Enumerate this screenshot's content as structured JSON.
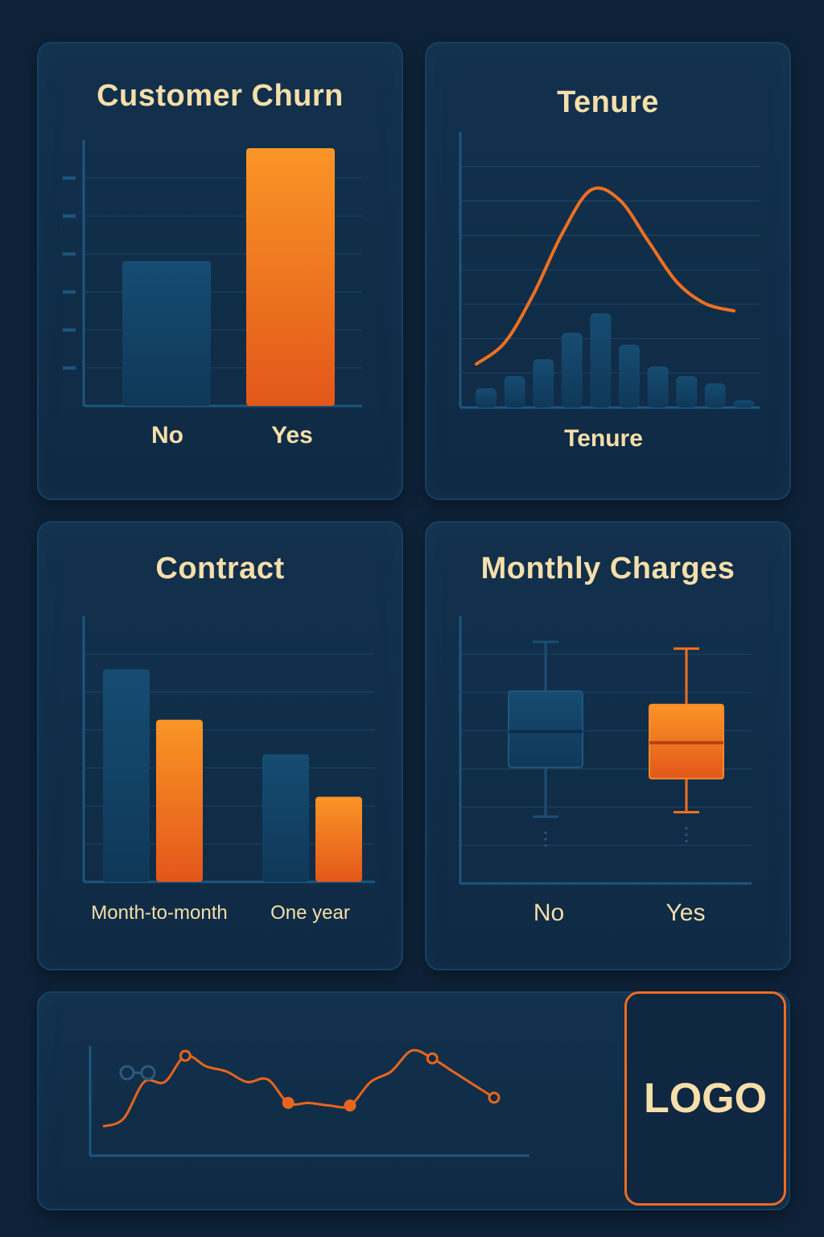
{
  "colors": {
    "dark_bar": "#124466",
    "orange": "#f47b20",
    "text": "#f6dfaa",
    "grid": "#1d4566",
    "axis": "#1d5680"
  },
  "logo": {
    "text": "LOGO"
  },
  "chart_data": [
    {
      "id": "churn",
      "type": "bar",
      "title": "Customer Churn",
      "categories": [
        "No",
        "Yes"
      ],
      "values": [
        36,
        64
      ],
      "ylim": [
        0,
        66
      ],
      "grid": true,
      "series_colors": [
        "dark",
        "orange"
      ]
    },
    {
      "id": "tenure",
      "type": "bar",
      "title": "Tenure",
      "xlabel": "Tenure",
      "values": [
        8,
        13,
        20,
        31,
        39,
        26,
        17,
        13,
        10,
        3
      ],
      "curve": [
        18,
        27,
        47,
        72,
        90,
        86,
        69,
        52,
        43,
        40
      ],
      "ylim": [
        0,
        100
      ],
      "grid": true
    },
    {
      "id": "contract",
      "type": "bar",
      "title": "Contract",
      "categories": [
        "Month-to-month",
        "One year"
      ],
      "series": [
        {
          "color": "dark",
          "values": [
            80,
            48
          ]
        },
        {
          "color": "orange",
          "values": [
            61,
            32
          ]
        }
      ],
      "ylim": [
        0,
        100
      ],
      "grid": true
    },
    {
      "id": "monthly",
      "type": "box",
      "title": "Monthly Charges",
      "categories": [
        "No",
        "Yes"
      ],
      "boxes": [
        {
          "whisker_low": 14,
          "q1": 36,
          "median": 52,
          "q3": 70,
          "whisker_high": 92
        },
        {
          "whisker_low": 16,
          "q1": 31,
          "median": 47,
          "q3": 64,
          "whisker_high": 89
        }
      ],
      "ylim": [
        0,
        100
      ],
      "grid": true
    },
    {
      "id": "trend",
      "type": "line",
      "values": [
        5,
        8,
        22,
        22,
        32,
        28,
        26,
        22,
        23,
        14,
        14,
        13,
        13,
        22,
        26,
        34,
        31,
        26,
        21,
        16
      ],
      "markers": [
        {
          "index": 4,
          "style": "hollow"
        },
        {
          "index": 9,
          "style": "filled"
        },
        {
          "index": 12,
          "style": "filled"
        },
        {
          "index": 16,
          "style": "hollow"
        },
        {
          "index": 19,
          "style": "hollow"
        }
      ],
      "ylim": [
        0,
        40
      ]
    }
  ]
}
